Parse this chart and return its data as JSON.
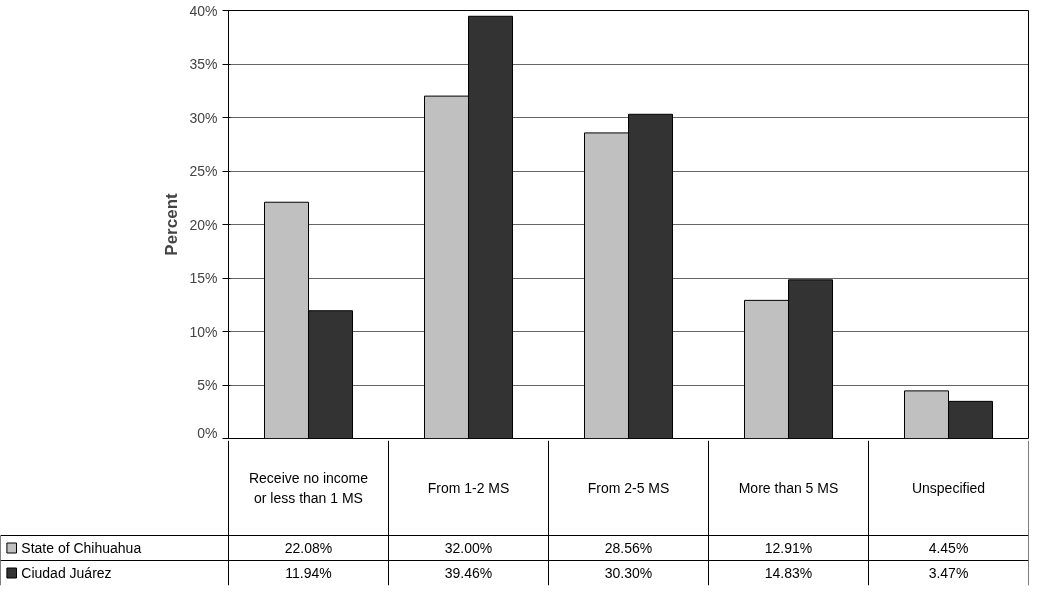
{
  "chart_data": {
    "type": "bar",
    "ylabel": "Percent",
    "categories": [
      "Receive no income or less than 1 MS",
      "From 1-2 MS",
      "From 2-5 MS",
      "More than 5 MS",
      "Unspecified"
    ],
    "series": [
      {
        "name": "State of Chihuahua",
        "color": "#c0c0c0",
        "values": [
          22.08,
          32.0,
          28.56,
          12.91,
          4.45
        ],
        "value_labels": [
          "22.08%",
          "32.00%",
          "28.56%",
          "12.91%",
          "4.45%"
        ]
      },
      {
        "name": "Ciudad Juárez",
        "color": "#333333",
        "values": [
          11.94,
          39.46,
          30.3,
          14.83,
          3.47
        ],
        "value_labels": [
          "11.94%",
          "39.46%",
          "30.30%",
          "14.83%",
          "3.47%"
        ]
      }
    ],
    "ylim": [
      0,
      40
    ],
    "yticks": [
      {
        "value": 0,
        "label": "0%"
      },
      {
        "value": 5,
        "label": "5%"
      },
      {
        "value": 10,
        "label": "10%"
      },
      {
        "value": 15,
        "label": "15%"
      },
      {
        "value": 20,
        "label": "20%"
      },
      {
        "value": 25,
        "label": "25%"
      },
      {
        "value": 30,
        "label": "30%"
      },
      {
        "value": 35,
        "label": "35%"
      },
      {
        "value": 40,
        "label": "40%"
      }
    ],
    "grid": "y",
    "legend": "bottom"
  }
}
